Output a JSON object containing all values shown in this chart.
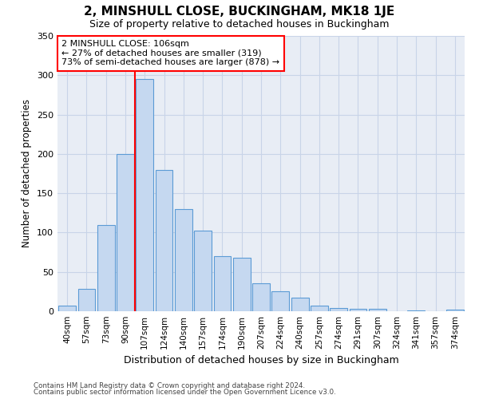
{
  "title": "2, MINSHULL CLOSE, BUCKINGHAM, MK18 1JE",
  "subtitle": "Size of property relative to detached houses in Buckingham",
  "xlabel": "Distribution of detached houses by size in Buckingham",
  "ylabel": "Number of detached properties",
  "categories": [
    "40sqm",
    "57sqm",
    "73sqm",
    "90sqm",
    "107sqm",
    "124sqm",
    "140sqm",
    "157sqm",
    "174sqm",
    "190sqm",
    "207sqm",
    "224sqm",
    "240sqm",
    "257sqm",
    "274sqm",
    "291sqm",
    "307sqm",
    "324sqm",
    "341sqm",
    "357sqm",
    "374sqm"
  ],
  "values": [
    7,
    28,
    110,
    200,
    295,
    180,
    130,
    102,
    70,
    68,
    36,
    25,
    17,
    7,
    4,
    3,
    3,
    0,
    1,
    0,
    2
  ],
  "bar_color": "#c5d8f0",
  "bar_edge_color": "#5b9bd5",
  "vline_bin": 4,
  "annotation_line1": "2 MINSHULL CLOSE: 106sqm",
  "annotation_line2": "← 27% of detached houses are smaller (319)",
  "annotation_line3": "73% of semi-detached houses are larger (878) →",
  "annotation_box_color": "white",
  "annotation_box_edge_color": "red",
  "vline_color": "red",
  "grid_color": "#c8d4e8",
  "bg_color": "#e8edf5",
  "ylim": [
    0,
    350
  ],
  "yticks": [
    0,
    50,
    100,
    150,
    200,
    250,
    300,
    350
  ],
  "footer1": "Contains HM Land Registry data © Crown copyright and database right 2024.",
  "footer2": "Contains public sector information licensed under the Open Government Licence v3.0."
}
